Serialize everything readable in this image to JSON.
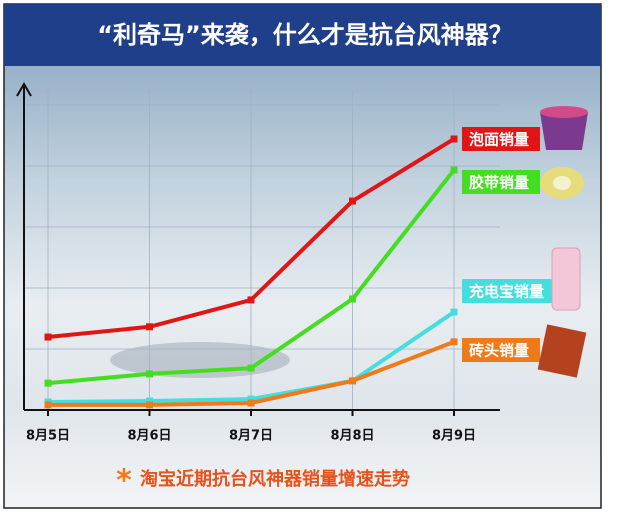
{
  "chart_data": {
    "type": "line",
    "title": "“利奇马”来袭，什么才是抗台风神器？",
    "subtitle": "淘宝近期抗台风神器销量增速走势",
    "categories": [
      "8月5日",
      "8月6日",
      "8月7日",
      "8月8日",
      "8月9日"
    ],
    "series": [
      {
        "name": "泡面销量",
        "color": "#e01515",
        "values": [
          22.8,
          26,
          34.4,
          65.3,
          84.7
        ]
      },
      {
        "name": "胶带销量",
        "color": "#44dd22",
        "values": [
          8.4,
          11.3,
          13.1,
          34.7,
          75
        ]
      },
      {
        "name": "充电宝销量",
        "color": "#44dede",
        "values": [
          2.5,
          2.8,
          3.4,
          9.1,
          30.6
        ]
      },
      {
        "name": "砖头销量",
        "color": "#ee7a1a",
        "values": [
          1.6,
          1.6,
          2.2,
          9.1,
          21.3
        ]
      }
    ],
    "ylim": [
      0,
      100
    ],
    "grid": true
  }
}
